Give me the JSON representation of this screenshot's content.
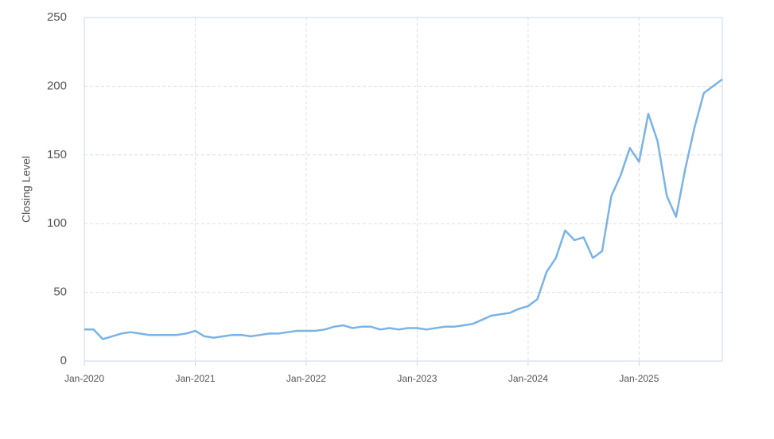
{
  "chart_data": {
    "type": "line",
    "y_label": "Closing Level",
    "x": [
      "2020-01",
      "2020-02",
      "2020-03",
      "2020-04",
      "2020-05",
      "2020-06",
      "2020-07",
      "2020-08",
      "2020-09",
      "2020-10",
      "2020-11",
      "2020-12",
      "2021-01",
      "2021-02",
      "2021-03",
      "2021-04",
      "2021-05",
      "2021-06",
      "2021-07",
      "2021-08",
      "2021-09",
      "2021-10",
      "2021-11",
      "2021-12",
      "2022-01",
      "2022-02",
      "2022-03",
      "2022-04",
      "2022-05",
      "2022-06",
      "2022-07",
      "2022-08",
      "2022-09",
      "2022-10",
      "2022-11",
      "2022-12",
      "2023-01",
      "2023-02",
      "2023-03",
      "2023-04",
      "2023-05",
      "2023-06",
      "2023-07",
      "2023-08",
      "2023-09",
      "2023-10",
      "2023-11",
      "2023-12",
      "2024-01",
      "2024-02",
      "2024-03",
      "2024-04",
      "2024-05",
      "2024-06",
      "2024-07",
      "2024-08",
      "2024-09",
      "2024-10",
      "2024-11",
      "2024-12",
      "2025-01",
      "2025-02",
      "2025-03",
      "2025-04",
      "2025-05",
      "2025-06",
      "2025-07",
      "2025-08",
      "2025-09",
      "2025-10"
    ],
    "series": [
      {
        "name": "Closing Level",
        "color": "#7ab3e6",
        "values": [
          23,
          23,
          16,
          18,
          20,
          21,
          20,
          19,
          19,
          19,
          19,
          20,
          22,
          18,
          17,
          18,
          19,
          19,
          18,
          19,
          20,
          20,
          21,
          22,
          22,
          22,
          23,
          25,
          26,
          24,
          25,
          25,
          23,
          24,
          23,
          24,
          24,
          23,
          24,
          25,
          25,
          26,
          27,
          30,
          33,
          34,
          35,
          38,
          40,
          45,
          65,
          75,
          95,
          88,
          90,
          75,
          80,
          120,
          135,
          155,
          145,
          180,
          160,
          120,
          105,
          140,
          170,
          195,
          200,
          205
        ]
      }
    ],
    "xlim": [
      "2020-01",
      "2025-10"
    ],
    "xticks": [
      {
        "value": "2020-01",
        "label": "Jan-2020"
      },
      {
        "value": "2021-01",
        "label": "Jan-2021"
      },
      {
        "value": "2022-01",
        "label": "Jan-2022"
      },
      {
        "value": "2023-01",
        "label": "Jan-2023"
      },
      {
        "value": "2024-01",
        "label": "Jan-2024"
      },
      {
        "value": "2025-01",
        "label": "Jan-2025"
      }
    ],
    "ylim": [
      0,
      250
    ],
    "yticks": [
      0,
      50,
      100,
      150,
      200,
      250
    ],
    "grid": true
  }
}
